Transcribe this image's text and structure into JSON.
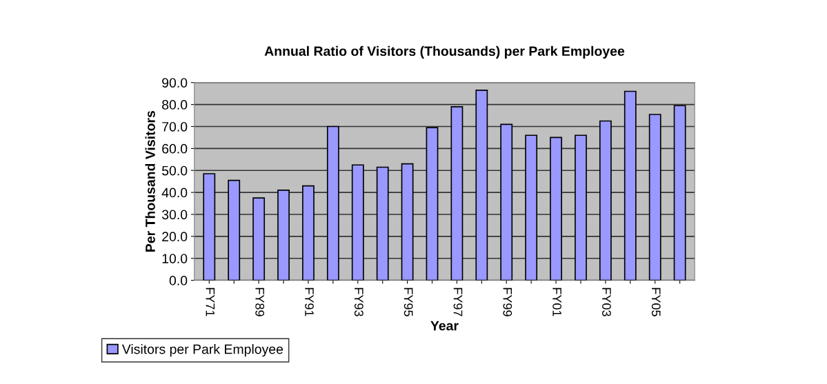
{
  "chart_data": {
    "type": "bar",
    "title": "Annual Ratio of Visitors (Thousands) per Park Employee",
    "xlabel": "Year",
    "ylabel": "Per Thousand Visitors",
    "categories": [
      "FY71",
      null,
      "FY89",
      null,
      "FY91",
      null,
      "FY93",
      null,
      "FY95",
      null,
      "FY97",
      null,
      "FY99",
      null,
      "FY01",
      null,
      "FY03",
      null,
      "FY05",
      null
    ],
    "series": [
      {
        "name": "Visitors per Park Employee",
        "color": "#9999ff",
        "values": [
          48.5,
          45.5,
          37.5,
          41,
          43,
          70,
          52.5,
          51.5,
          53,
          69.5,
          79,
          86.5,
          71,
          66,
          65,
          66,
          72.5,
          86,
          75.5,
          79.5
        ]
      }
    ],
    "ylim": [
      0,
      90
    ],
    "yticks": [
      {
        "value": 0,
        "label": "0.0"
      },
      {
        "value": 10,
        "label": "10.0"
      },
      {
        "value": 20,
        "label": "20.0"
      },
      {
        "value": 30,
        "label": "30.0"
      },
      {
        "value": 40,
        "label": "40.0"
      },
      {
        "value": 50,
        "label": "50.0"
      },
      {
        "value": 60,
        "label": "60.0"
      },
      {
        "value": 70,
        "label": "70.0"
      },
      {
        "value": 80,
        "label": "80.0"
      },
      {
        "value": 90,
        "label": "90.0"
      }
    ],
    "grid": "y",
    "legend": "bottom left"
  }
}
